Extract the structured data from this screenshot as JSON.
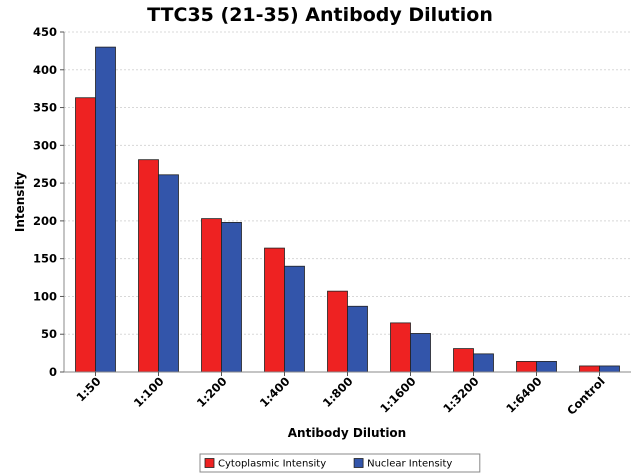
{
  "chart_data": {
    "type": "bar",
    "title": "TTC35 (21-35) Antibody Dilution",
    "xlabel": "Antibody Dilution",
    "ylabel": "Intensity",
    "categories": [
      "1:50",
      "1:100",
      "1:200",
      "1:400",
      "1:800",
      "1:1600",
      "1:3200",
      "1:6400",
      "Control"
    ],
    "series": [
      {
        "name": "Cytoplasmic Intensity",
        "color": "#ee2222",
        "values": [
          363,
          281,
          203,
          164,
          107,
          65,
          31,
          14,
          8
        ]
      },
      {
        "name": "Nuclear Intensity",
        "color": "#3355aa",
        "values": [
          430,
          261,
          198,
          140,
          87,
          51,
          24,
          14,
          8
        ]
      }
    ],
    "ylim": [
      0,
      450
    ],
    "yticks": [
      0,
      50,
      100,
      150,
      200,
      250,
      300,
      350,
      400,
      450
    ],
    "grid": true,
    "legend_position": "bottom"
  }
}
